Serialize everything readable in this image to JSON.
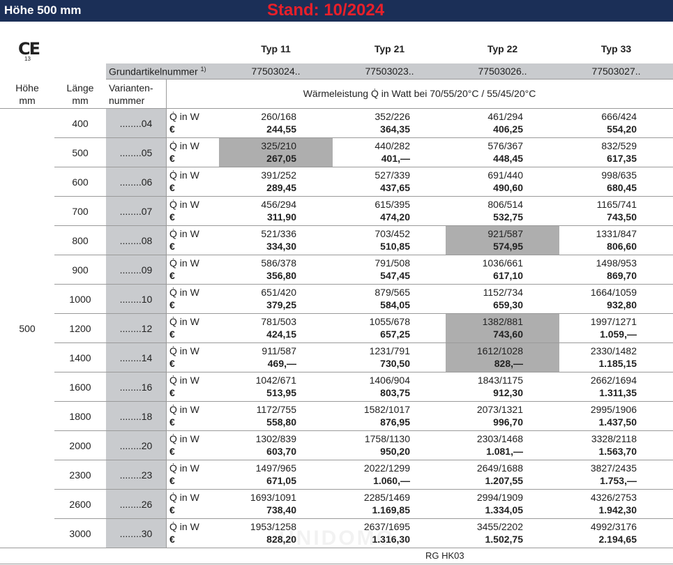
{
  "header": {
    "title": "Höhe 500 mm",
    "stand": "Stand: 10/2024"
  },
  "ce": {
    "mark": "CE",
    "number": "13"
  },
  "table": {
    "types": [
      "Typ 11",
      "Typ 21",
      "Typ 22",
      "Typ 33"
    ],
    "grundartikel_label": "Grundartikelnummer",
    "footnote_mark": "1)",
    "grundartikel": [
      "77503024..",
      "77503023..",
      "77503026..",
      "77503027.."
    ],
    "col_hoehe": "Höhe mm",
    "col_laenge": "Länge mm",
    "col_variante": "Varianten-nummer",
    "waermeleistung": "Wärmeleistung Q̇ in Watt bei 70/55/20°C / 55/45/20°C",
    "hoehe": "500",
    "label_q": "Q̇ in W",
    "label_price": "€",
    "rows": [
      {
        "laenge": "400",
        "variante": "........04",
        "q": [
          "260/168",
          "352/226",
          "461/294",
          "666/424"
        ],
        "price": [
          "244,55",
          "364,35",
          "406,25",
          "554,20"
        ],
        "highlight": []
      },
      {
        "laenge": "500",
        "variante": "........05",
        "q": [
          "325/210",
          "440/282",
          "576/367",
          "832/529"
        ],
        "price": [
          "267,05",
          "401,—",
          "448,45",
          "617,35"
        ],
        "highlight": [
          0
        ]
      },
      {
        "laenge": "600",
        "variante": "........06",
        "q": [
          "391/252",
          "527/339",
          "691/440",
          "998/635"
        ],
        "price": [
          "289,45",
          "437,65",
          "490,60",
          "680,45"
        ],
        "highlight": []
      },
      {
        "laenge": "700",
        "variante": "........07",
        "q": [
          "456/294",
          "615/395",
          "806/514",
          "1165/741"
        ],
        "price": [
          "311,90",
          "474,20",
          "532,75",
          "743,50"
        ],
        "highlight": []
      },
      {
        "laenge": "800",
        "variante": "........08",
        "q": [
          "521/336",
          "703/452",
          "921/587",
          "1331/847"
        ],
        "price": [
          "334,30",
          "510,85",
          "574,95",
          "806,60"
        ],
        "highlight": [
          2
        ]
      },
      {
        "laenge": "900",
        "variante": "........09",
        "q": [
          "586/378",
          "791/508",
          "1036/661",
          "1498/953"
        ],
        "price": [
          "356,80",
          "547,45",
          "617,10",
          "869,70"
        ],
        "highlight": []
      },
      {
        "laenge": "1000",
        "variante": "........10",
        "q": [
          "651/420",
          "879/565",
          "1152/734",
          "1664/1059"
        ],
        "price": [
          "379,25",
          "584,05",
          "659,30",
          "932,80"
        ],
        "highlight": []
      },
      {
        "laenge": "1200",
        "variante": "........12",
        "q": [
          "781/503",
          "1055/678",
          "1382/881",
          "1997/1271"
        ],
        "price": [
          "424,15",
          "657,25",
          "743,60",
          "1.059,—"
        ],
        "highlight": [
          2
        ]
      },
      {
        "laenge": "1400",
        "variante": "........14",
        "q": [
          "911/587",
          "1231/791",
          "1612/1028",
          "2330/1482"
        ],
        "price": [
          "469,—",
          "730,50",
          "828,—",
          "1.185,15"
        ],
        "highlight": [
          2
        ]
      },
      {
        "laenge": "1600",
        "variante": "........16",
        "q": [
          "1042/671",
          "1406/904",
          "1843/1175",
          "2662/1694"
        ],
        "price": [
          "513,95",
          "803,75",
          "912,30",
          "1.311,35"
        ],
        "highlight": []
      },
      {
        "laenge": "1800",
        "variante": "........18",
        "q": [
          "1172/755",
          "1582/1017",
          "2073/1321",
          "2995/1906"
        ],
        "price": [
          "558,80",
          "876,95",
          "996,70",
          "1.437,50"
        ],
        "highlight": []
      },
      {
        "laenge": "2000",
        "variante": "........20",
        "q": [
          "1302/839",
          "1758/1130",
          "2303/1468",
          "3328/2118"
        ],
        "price": [
          "603,70",
          "950,20",
          "1.081,—",
          "1.563,70"
        ],
        "highlight": []
      },
      {
        "laenge": "2300",
        "variante": "........23",
        "q": [
          "1497/965",
          "2022/1299",
          "2649/1688",
          "3827/2435"
        ],
        "price": [
          "671,05",
          "1.060,—",
          "1.207,55",
          "1.753,—"
        ],
        "highlight": []
      },
      {
        "laenge": "2600",
        "variante": "........26",
        "q": [
          "1693/1091",
          "2285/1469",
          "2994/1909",
          "4326/2753"
        ],
        "price": [
          "738,40",
          "1.169,85",
          "1.334,05",
          "1.942,30"
        ],
        "highlight": []
      },
      {
        "laenge": "3000",
        "variante": "........30",
        "q": [
          "1953/1258",
          "2637/1695",
          "3455/2202",
          "4992/3176"
        ],
        "price": [
          "828,20",
          "1.316,30",
          "1.502,75",
          "2.194,65"
        ],
        "highlight": []
      }
    ]
  },
  "watermark": "UNIDOMO",
  "footer": "RG HK03"
}
